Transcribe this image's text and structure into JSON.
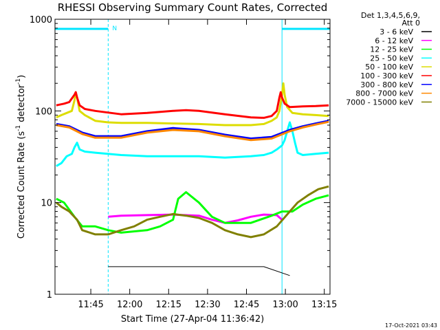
{
  "chart_data": {
    "type": "line",
    "title": "RHESSI Observing Summary Count Rates, Corrected",
    "xlabel": "Start Time (27-Apr-04 11:36:42)",
    "ylabel_main": "Corrected Count Rate (s",
    "ylabel_sup1": "-1",
    "ylabel_mid": " detector",
    "ylabel_sup2": "-1",
    "ylabel_end": ")",
    "yscale": "log",
    "ylim": [
      1,
      1000
    ],
    "xlim_minutes": [
      -5.5,
      100.5
    ],
    "x_ticks": [
      {
        "label": "11:45",
        "minute": 8.3
      },
      {
        "label": "12:00",
        "minute": 23.3
      },
      {
        "label": "12:15",
        "minute": 38.3
      },
      {
        "label": "12:30",
        "minute": 53.3
      },
      {
        "label": "12:45",
        "minute": 68.3
      },
      {
        "label": "13:00",
        "minute": 83.3
      },
      {
        "label": "13:15",
        "minute": 98.3
      }
    ],
    "y_ticks": [
      {
        "label": "1",
        "value": 1
      },
      {
        "label": "10",
        "value": 10
      },
      {
        "label": "100",
        "value": 100
      },
      {
        "label": "1000",
        "value": 1000
      }
    ],
    "legend_header": [
      "Det 1,3,4,5,6,9,",
      "Att 0"
    ],
    "legend_position": "right",
    "top_marker": "N",
    "night_intervals": [
      [
        -5.5,
        15.0
      ],
      [
        82.0,
        100.5
      ]
    ],
    "series": [
      {
        "name": "3 - 6 keV",
        "color": "#000000",
        "points": [
          [
            15,
            2
          ],
          [
            55,
            2
          ],
          [
            75,
            2
          ],
          [
            85,
            1.6
          ]
        ]
      },
      {
        "name": "6 - 12 keV",
        "color": "#ff00ff",
        "points": [
          [
            15,
            7
          ],
          [
            20,
            7.2
          ],
          [
            30,
            7.3
          ],
          [
            40,
            7.4
          ],
          [
            50,
            7.2
          ],
          [
            55,
            6.5
          ],
          [
            60,
            6.0
          ],
          [
            65,
            6.4
          ],
          [
            70,
            7.0
          ],
          [
            75,
            7.4
          ],
          [
            80,
            7.3
          ],
          [
            82,
            6.5
          ]
        ]
      },
      {
        "name": "12 - 25 keV",
        "color": "#00ff00",
        "points": [
          [
            -5,
            11
          ],
          [
            -2,
            10
          ],
          [
            2,
            7
          ],
          [
            5,
            5.5
          ],
          [
            10,
            5.5
          ],
          [
            15,
            5
          ],
          [
            20,
            4.7
          ],
          [
            30,
            5
          ],
          [
            35,
            5.5
          ],
          [
            40,
            6.5
          ],
          [
            42,
            11
          ],
          [
            45,
            13
          ],
          [
            50,
            10
          ],
          [
            55,
            7
          ],
          [
            60,
            6
          ],
          [
            70,
            6
          ],
          [
            78,
            7.2
          ],
          [
            82,
            8
          ],
          [
            86,
            8
          ],
          [
            90,
            9.5
          ],
          [
            95,
            11
          ],
          [
            100,
            12
          ]
        ]
      },
      {
        "name": "25 - 50 keV",
        "color": "#00ffff",
        "points": [
          [
            -5,
            25
          ],
          [
            -3,
            27
          ],
          [
            -1,
            32
          ],
          [
            1,
            34
          ],
          [
            2,
            40
          ],
          [
            3,
            45
          ],
          [
            4,
            38
          ],
          [
            6,
            36
          ],
          [
            10,
            35
          ],
          [
            20,
            33
          ],
          [
            30,
            32
          ],
          [
            40,
            32
          ],
          [
            50,
            32
          ],
          [
            60,
            31
          ],
          [
            70,
            32
          ],
          [
            75,
            33
          ],
          [
            78,
            35
          ],
          [
            80,
            38
          ],
          [
            82,
            42
          ],
          [
            83,
            48
          ],
          [
            84,
            60
          ],
          [
            85,
            75
          ],
          [
            86,
            60
          ],
          [
            87,
            45
          ],
          [
            88,
            35
          ],
          [
            90,
            33
          ],
          [
            95,
            34
          ],
          [
            100,
            35
          ]
        ]
      },
      {
        "name": "50 - 100 keV",
        "color": "#dddd00",
        "points": [
          [
            -5,
            85
          ],
          [
            -3,
            90
          ],
          [
            -1,
            95
          ],
          [
            1,
            100
          ],
          [
            2,
            130
          ],
          [
            2.5,
            160
          ],
          [
            3,
            140
          ],
          [
            4,
            100
          ],
          [
            6,
            90
          ],
          [
            10,
            78
          ],
          [
            15,
            75
          ],
          [
            20,
            74
          ],
          [
            30,
            74
          ],
          [
            40,
            73
          ],
          [
            50,
            72
          ],
          [
            60,
            70
          ],
          [
            70,
            70
          ],
          [
            75,
            72
          ],
          [
            78,
            78
          ],
          [
            80,
            85
          ],
          [
            81,
            100
          ],
          [
            82,
            150
          ],
          [
            82.5,
            200
          ],
          [
            83,
            150
          ],
          [
            84,
            110
          ],
          [
            86,
            95
          ],
          [
            90,
            92
          ],
          [
            95,
            90
          ],
          [
            100,
            88
          ]
        ]
      },
      {
        "name": "100 - 300 keV",
        "color": "#ff0000",
        "points": [
          [
            -5,
            115
          ],
          [
            -2,
            120
          ],
          [
            0,
            125
          ],
          [
            2,
            150
          ],
          [
            2.5,
            160
          ],
          [
            3,
            140
          ],
          [
            4,
            115
          ],
          [
            6,
            105
          ],
          [
            10,
            100
          ],
          [
            20,
            92
          ],
          [
            30,
            95
          ],
          [
            40,
            100
          ],
          [
            45,
            102
          ],
          [
            50,
            100
          ],
          [
            60,
            92
          ],
          [
            70,
            85
          ],
          [
            75,
            84
          ],
          [
            78,
            88
          ],
          [
            80,
            100
          ],
          [
            81,
            140
          ],
          [
            81.5,
            160
          ],
          [
            82,
            140
          ],
          [
            83,
            120
          ],
          [
            85,
            110
          ],
          [
            90,
            112
          ],
          [
            95,
            113
          ],
          [
            100,
            115
          ]
        ]
      },
      {
        "name": "300 - 800 keV",
        "color": "#0000ff",
        "points": [
          [
            -5,
            72
          ],
          [
            0,
            68
          ],
          [
            5,
            58
          ],
          [
            10,
            53
          ],
          [
            20,
            53
          ],
          [
            30,
            60
          ],
          [
            40,
            65
          ],
          [
            50,
            62
          ],
          [
            60,
            55
          ],
          [
            70,
            50
          ],
          [
            78,
            52
          ],
          [
            85,
            62
          ],
          [
            90,
            68
          ],
          [
            95,
            73
          ],
          [
            100,
            78
          ]
        ]
      },
      {
        "name": "800 - 7000 keV",
        "color": "#ff8800",
        "points": [
          [
            -5,
            70
          ],
          [
            0,
            66
          ],
          [
            5,
            56
          ],
          [
            10,
            51
          ],
          [
            20,
            51
          ],
          [
            30,
            58
          ],
          [
            40,
            62
          ],
          [
            50,
            60
          ],
          [
            60,
            53
          ],
          [
            70,
            48
          ],
          [
            78,
            50
          ],
          [
            85,
            60
          ],
          [
            90,
            66
          ],
          [
            95,
            71
          ],
          [
            100,
            76
          ]
        ]
      },
      {
        "name": "7000 - 15000 keV",
        "color": "#808000",
        "points": [
          [
            -5,
            10
          ],
          [
            -3,
            9
          ],
          [
            0,
            8
          ],
          [
            3,
            6.5
          ],
          [
            5,
            5
          ],
          [
            10,
            4.5
          ],
          [
            15,
            4.5
          ],
          [
            20,
            5
          ],
          [
            25,
            5.5
          ],
          [
            30,
            6.5
          ],
          [
            35,
            7
          ],
          [
            40,
            7.5
          ],
          [
            45,
            7.2
          ],
          [
            50,
            6.8
          ],
          [
            55,
            6
          ],
          [
            60,
            5
          ],
          [
            65,
            4.5
          ],
          [
            70,
            4.2
          ],
          [
            75,
            4.5
          ],
          [
            80,
            5.5
          ],
          [
            85,
            8
          ],
          [
            88,
            10
          ],
          [
            92,
            12
          ],
          [
            96,
            14
          ],
          [
            100,
            15
          ]
        ]
      }
    ]
  },
  "footer_timestamp": "17-Oct-2021 03:43"
}
